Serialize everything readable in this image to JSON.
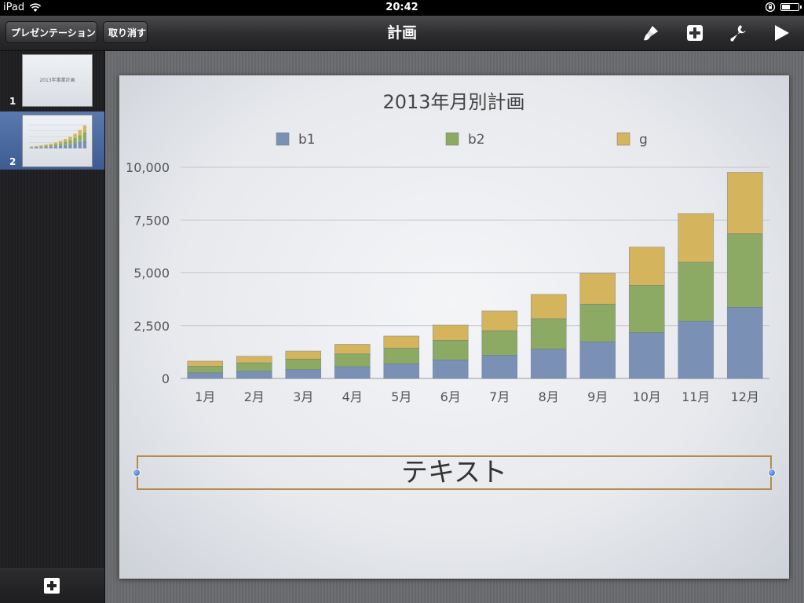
{
  "status_bar": {
    "device": "iPad",
    "time": "20:42",
    "battery_level": 0.5
  },
  "toolbar": {
    "presentation_label": "プレゼンテーション",
    "undo_label": "取り消す",
    "title": "計画",
    "icons": [
      "paintbrush-icon",
      "add-icon",
      "wrench-icon",
      "play-icon"
    ]
  },
  "sidebar": {
    "slides": [
      {
        "number": "1",
        "thumb_title": "2013年事業計画"
      },
      {
        "number": "2"
      }
    ],
    "selected": 1
  },
  "slide": {
    "textbox_text": "テキスト"
  },
  "chart_data": {
    "type": "bar",
    "stacked": true,
    "title": "2013年月別計画",
    "categories": [
      "1月",
      "2月",
      "3月",
      "4月",
      "5月",
      "6月",
      "7月",
      "8月",
      "9月",
      "10月",
      "11月",
      "12月"
    ],
    "series": [
      {
        "name": "b1",
        "color": "#7b90b5",
        "values": [
          270,
          340,
          420,
          560,
          700,
          880,
          1100,
          1390,
          1740,
          2170,
          2710,
          3370
        ]
      },
      {
        "name": "b2",
        "color": "#8caa64",
        "values": [
          310,
          400,
          500,
          600,
          740,
          930,
          1160,
          1440,
          1780,
          2240,
          2790,
          3480
        ]
      },
      {
        "name": "g",
        "color": "#d4b45c",
        "values": [
          240,
          310,
          380,
          460,
          570,
          720,
          940,
          1150,
          1460,
          1810,
          2310,
          2910
        ]
      }
    ],
    "ylim": [
      0,
      10000
    ],
    "yticks": [
      "0",
      "2,500",
      "5,000",
      "7,500",
      "10,000"
    ],
    "grid": true,
    "legend_position": "top"
  }
}
